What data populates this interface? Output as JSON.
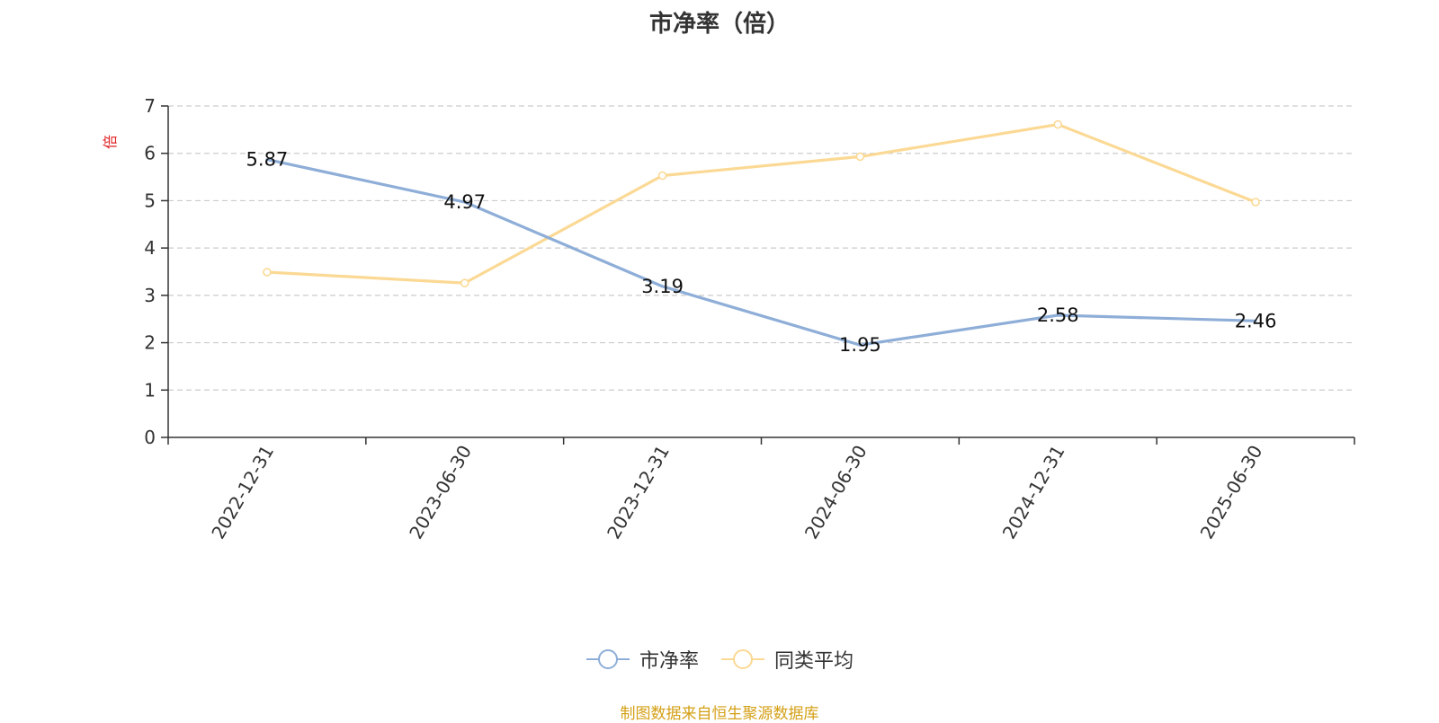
{
  "chart_data": {
    "type": "line",
    "title": "市净率（倍）",
    "ylabel": "倍",
    "ylim": [
      0,
      7
    ],
    "yticks": [
      0,
      1,
      2,
      3,
      4,
      5,
      6,
      7
    ],
    "categories": [
      "2022-12-31",
      "2023-06-30",
      "2023-12-31",
      "2024-06-30",
      "2024-12-31",
      "2025-06-30"
    ],
    "grid": true,
    "legend_position": "bottom",
    "series": [
      {
        "name": "市净率",
        "values": [
          5.87,
          4.97,
          3.19,
          1.95,
          2.58,
          2.46
        ],
        "labels": [
          "5.87",
          "4.97",
          "3.19",
          "1.95",
          "2.58",
          "2.46"
        ],
        "color": "#8eaed8"
      },
      {
        "name": "同类平均",
        "values": [
          3.49,
          3.26,
          5.53,
          5.93,
          6.61,
          4.97
        ],
        "color": "#fbd994"
      }
    ]
  },
  "source_note": "制图数据来自恒生聚源数据库",
  "colors": {
    "axis": "#333333",
    "grid": "#cccccc",
    "unit_label": "#e02020",
    "source_note": "#d4a017"
  }
}
